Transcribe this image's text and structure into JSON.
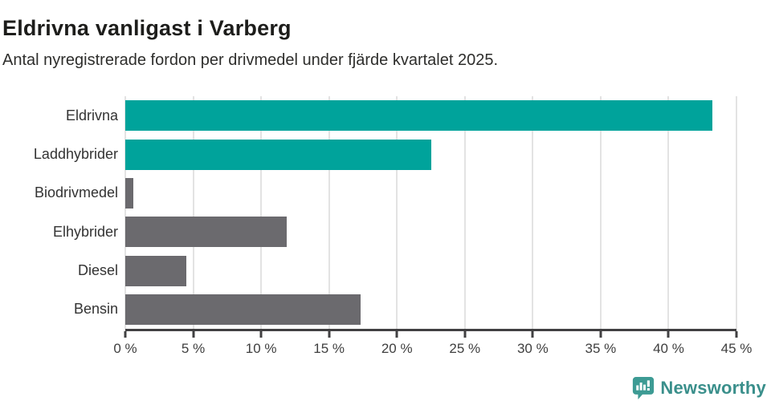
{
  "header": {
    "title": "Eldrivna vanligast i Varberg",
    "subtitle": "Antal nyregistrerade fordon per drivmedel under fjärde kvartalet 2025."
  },
  "chart_data": {
    "type": "bar",
    "orientation": "horizontal",
    "title": "Eldrivna vanligast i Varberg",
    "subtitle": "Antal nyregistrerade fordon per drivmedel under fjärde kvartalet 2025.",
    "categories": [
      "Eldrivna",
      "Laddhybrider",
      "Biodrivmedel",
      "Elhybrider",
      "Diesel",
      "Bensin"
    ],
    "values": [
      43.2,
      22.5,
      0.6,
      11.9,
      4.5,
      17.3
    ],
    "unit": "%",
    "bar_colors": [
      "#00a39b",
      "#00a39b",
      "#6b6a6e",
      "#6b6a6e",
      "#6b6a6e",
      "#6b6a6e"
    ],
    "xlim": [
      0,
      45
    ],
    "x_ticks": [
      0,
      5,
      10,
      15,
      20,
      25,
      30,
      35,
      40,
      45
    ],
    "x_tick_labels": [
      "0 %",
      "5 %",
      "10 %",
      "15 %",
      "20 %",
      "25 %",
      "30 %",
      "35 %",
      "40 %",
      "45 %"
    ],
    "grid": true,
    "legend": false,
    "xlabel": "",
    "ylabel": ""
  },
  "colors": {
    "teal": "#00a39b",
    "gray": "#6b6a6e",
    "axis": "#414042",
    "gridline": "#e3e3e3",
    "title_text": "#1d1d1b",
    "subtitle_text": "#2e2e2c",
    "logo_teal": "#3a8f8b"
  },
  "branding": {
    "logo_text": "Newsworthy",
    "logo_icon": "newsworthy-speech-bubble-chart-icon"
  }
}
